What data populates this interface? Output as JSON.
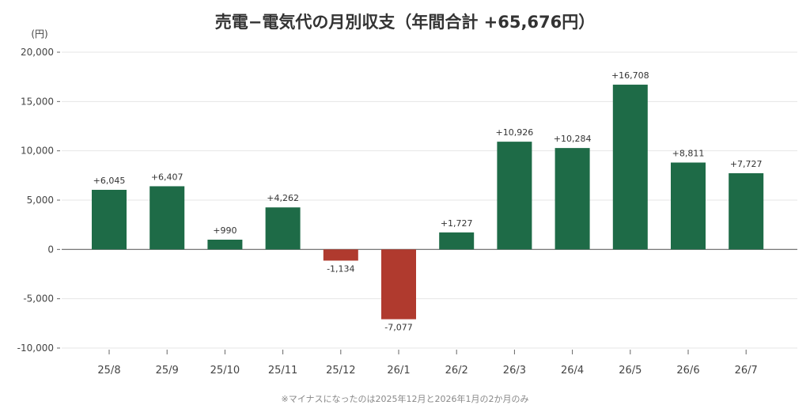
{
  "chart_data": {
    "type": "bar",
    "title": "売電−電気代の月別収支（年間合計 +65,676円）",
    "ylabel": "(円)",
    "ylim": [
      -10000,
      20000
    ],
    "yticks": [
      20000,
      15000,
      10000,
      5000,
      0,
      -5000,
      -10000
    ],
    "ytick_labels": [
      "20,000",
      "15,000",
      "10,000",
      "5,000",
      "0",
      "-5,000",
      "-10,000"
    ],
    "grid": true,
    "categories": [
      "25/8",
      "25/9",
      "25/10",
      "25/11",
      "25/12",
      "26/1",
      "26/2",
      "26/3",
      "26/4",
      "26/5",
      "26/6",
      "26/7"
    ],
    "values": [
      6045,
      6407,
      990,
      4262,
      -1134,
      -7077,
      1727,
      10926,
      10284,
      16708,
      8811,
      7727
    ],
    "value_labels": [
      "+6,045",
      "+6,407",
      "+990",
      "+4,262",
      "-1,134",
      "-7,077",
      "+1,727",
      "+10,926",
      "+10,284",
      "+16,708",
      "+8,811",
      "+7,727"
    ],
    "colors": {
      "positive": "#1e6b47",
      "negative": "#b03a2e",
      "grid": "#e6e6e6",
      "zero_line": "#666666"
    },
    "footnote": "※マイナスになったのは2025年12月と2026年1月の2か月のみ"
  }
}
